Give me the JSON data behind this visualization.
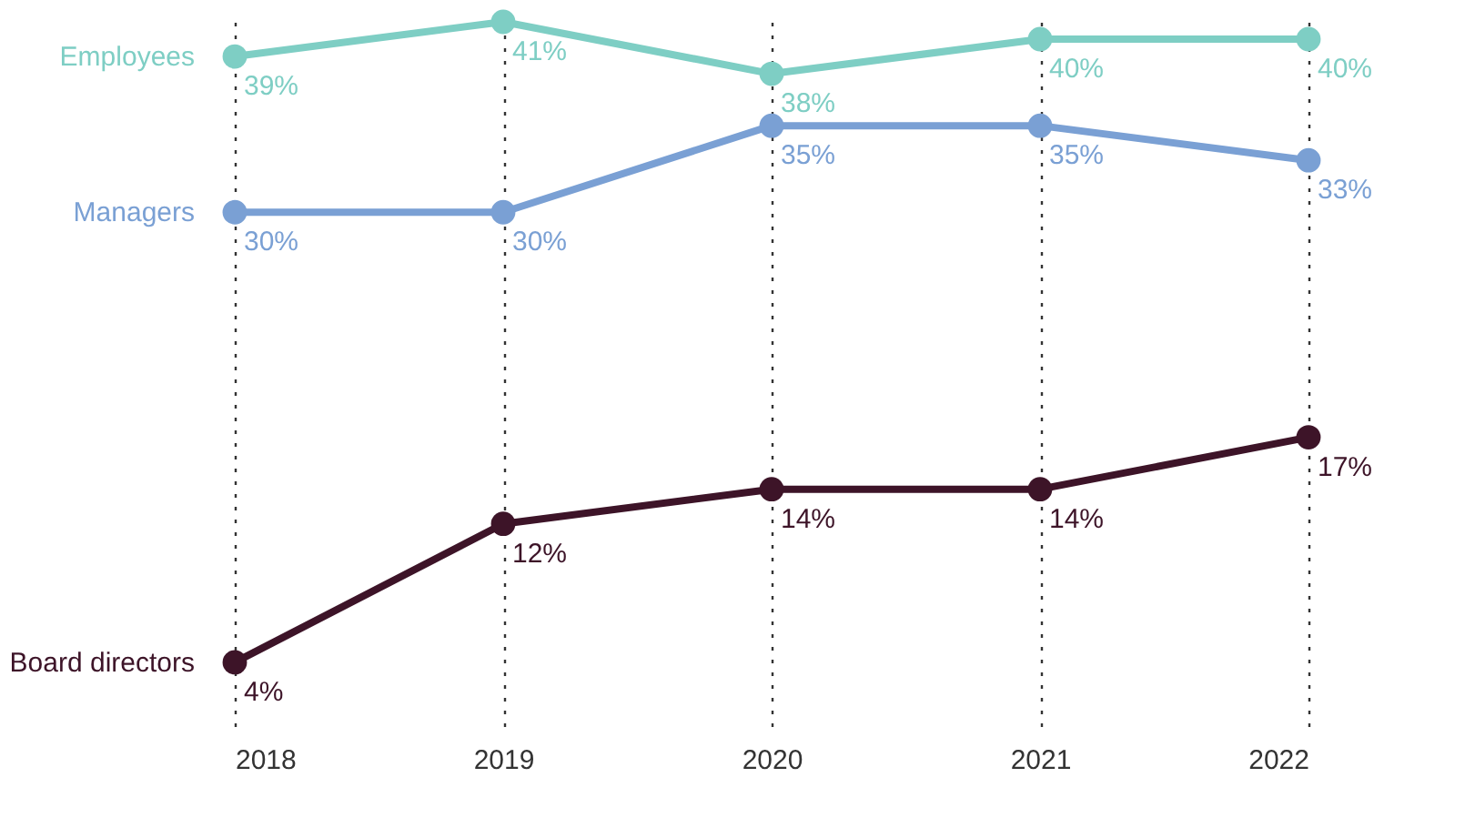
{
  "chart_data": {
    "type": "line",
    "categories": [
      "2018",
      "2019",
      "2020",
      "2021",
      "2022"
    ],
    "series": [
      {
        "name": "Employees",
        "color": "#7ecec4",
        "values": [
          39,
          41,
          38,
          40,
          40
        ],
        "value_labels": [
          "39%",
          "41%",
          "38%",
          "40%",
          "40%"
        ]
      },
      {
        "name": "Managers",
        "color": "#7aa0d4",
        "values": [
          30,
          30,
          35,
          35,
          33
        ],
        "value_labels": [
          "30%",
          "30%",
          "35%",
          "35%",
          "33%"
        ]
      },
      {
        "name": "Board directors",
        "color": "#3d1428",
        "values": [
          4,
          12,
          14,
          14,
          17
        ],
        "value_labels": [
          "4%",
          "12%",
          "14%",
          "14%",
          "17%"
        ]
      }
    ],
    "grid": "x",
    "legend": false,
    "marker": "circle",
    "line_style": "solid"
  }
}
